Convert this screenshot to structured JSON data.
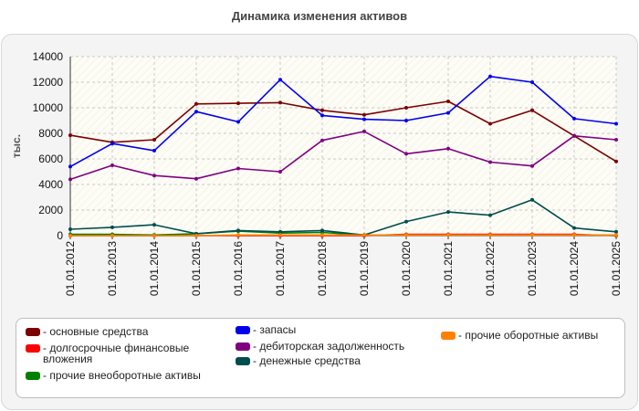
{
  "chart_data": {
    "type": "line",
    "title": "Динамика изменения активов",
    "ylabel": "тыс.",
    "xlabel": "",
    "ylim": [
      0,
      14000
    ],
    "yticks": [
      0,
      2000,
      4000,
      6000,
      8000,
      10000,
      12000,
      14000
    ],
    "grid": true,
    "legend_position": "bottom",
    "categories": [
      "01.01.2012",
      "01.01.2013",
      "01.01.2014",
      "01.01.2015",
      "01.01.2016",
      "01.01.2017",
      "01.01.2018",
      "01.01.2019",
      "01.01.2020",
      "01.01.2021",
      "01.01.2022",
      "01.01.2023",
      "01.01.2024",
      "01.01.2025"
    ],
    "series": [
      {
        "name": "- основные средства",
        "color": "#7b0000",
        "values": [
          7850,
          7300,
          7500,
          10300,
          10350,
          10400,
          9800,
          9450,
          10000,
          10500,
          8750,
          9800,
          7800,
          5800
        ]
      },
      {
        "name": "- долгосрочные финансовые вложения",
        "color": "#ff0000",
        "values": [
          0,
          0,
          0,
          0,
          0,
          0,
          0,
          0,
          100,
          100,
          100,
          100,
          100,
          0
        ]
      },
      {
        "name": "- прочие внеоборотные активы",
        "color": "#008000",
        "values": [
          100,
          100,
          50,
          150,
          350,
          200,
          250,
          50,
          50,
          50,
          50,
          50,
          50,
          30
        ]
      },
      {
        "name": "- запасы",
        "color": "#0000ee",
        "values": [
          5400,
          7200,
          6650,
          9700,
          8900,
          12200,
          9400,
          9100,
          9000,
          9600,
          12450,
          12000,
          9150,
          8750
        ]
      },
      {
        "name": "- дебиторская задолженность",
        "color": "#800080",
        "values": [
          4400,
          5500,
          4700,
          4450,
          5250,
          5000,
          7450,
          8150,
          6400,
          6800,
          5750,
          5450,
          7800,
          7500
        ]
      },
      {
        "name": "- денежные средства",
        "color": "#004d4d",
        "values": [
          500,
          650,
          850,
          150,
          400,
          300,
          400,
          50,
          1100,
          1850,
          1600,
          2800,
          600,
          300
        ]
      },
      {
        "name": "- прочие оборотные активы",
        "color": "#ff8000",
        "values": [
          0,
          0,
          0,
          0,
          50,
          50,
          50,
          50,
          50,
          50,
          50,
          50,
          50,
          50
        ]
      }
    ]
  }
}
